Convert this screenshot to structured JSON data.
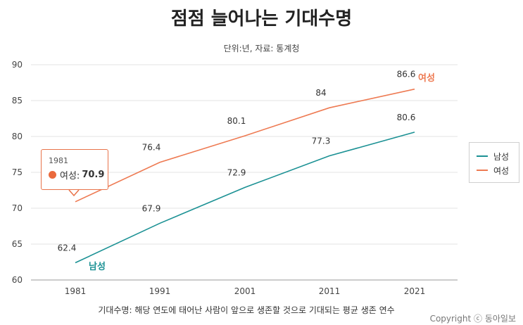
{
  "chart_data": {
    "type": "line",
    "title": "점점 늘어나는 기대수명",
    "subtitle": "단위:년, 자료: 통계청",
    "x": [
      "1981",
      "1991",
      "2001",
      "2011",
      "2021"
    ],
    "ylim": [
      60,
      90
    ],
    "yticks": [
      "60",
      "65",
      "70",
      "75",
      "80",
      "85",
      "90"
    ],
    "grid": true,
    "legend_position": "right",
    "series": [
      {
        "name": "남성",
        "values": [
          62.4,
          67.9,
          72.9,
          77.3,
          80.6
        ],
        "labels": [
          "62.4",
          "67.9",
          "72.9",
          "77.3",
          "80.6"
        ],
        "color": "#1b9194"
      },
      {
        "name": "여성",
        "values": [
          70.9,
          76.4,
          80.1,
          84,
          86.6
        ],
        "labels": [
          "70.9",
          "76.4",
          "80.1",
          "84",
          "86.6"
        ],
        "color": "#ee7a52"
      }
    ],
    "tooltip": {
      "year": "1981",
      "label": "여성:",
      "value": "70.9"
    },
    "footnote": "기대수명: 해당 연도에 태어난 사람이 앞으로 생존할 것으로 기대되는 평균 생존 연수"
  },
  "credit": "Copyright ⓒ 동아일보",
  "colors": {
    "male": "#1b9194",
    "female": "#ee7a52",
    "tooltip_dot": "#ea6a3d"
  }
}
